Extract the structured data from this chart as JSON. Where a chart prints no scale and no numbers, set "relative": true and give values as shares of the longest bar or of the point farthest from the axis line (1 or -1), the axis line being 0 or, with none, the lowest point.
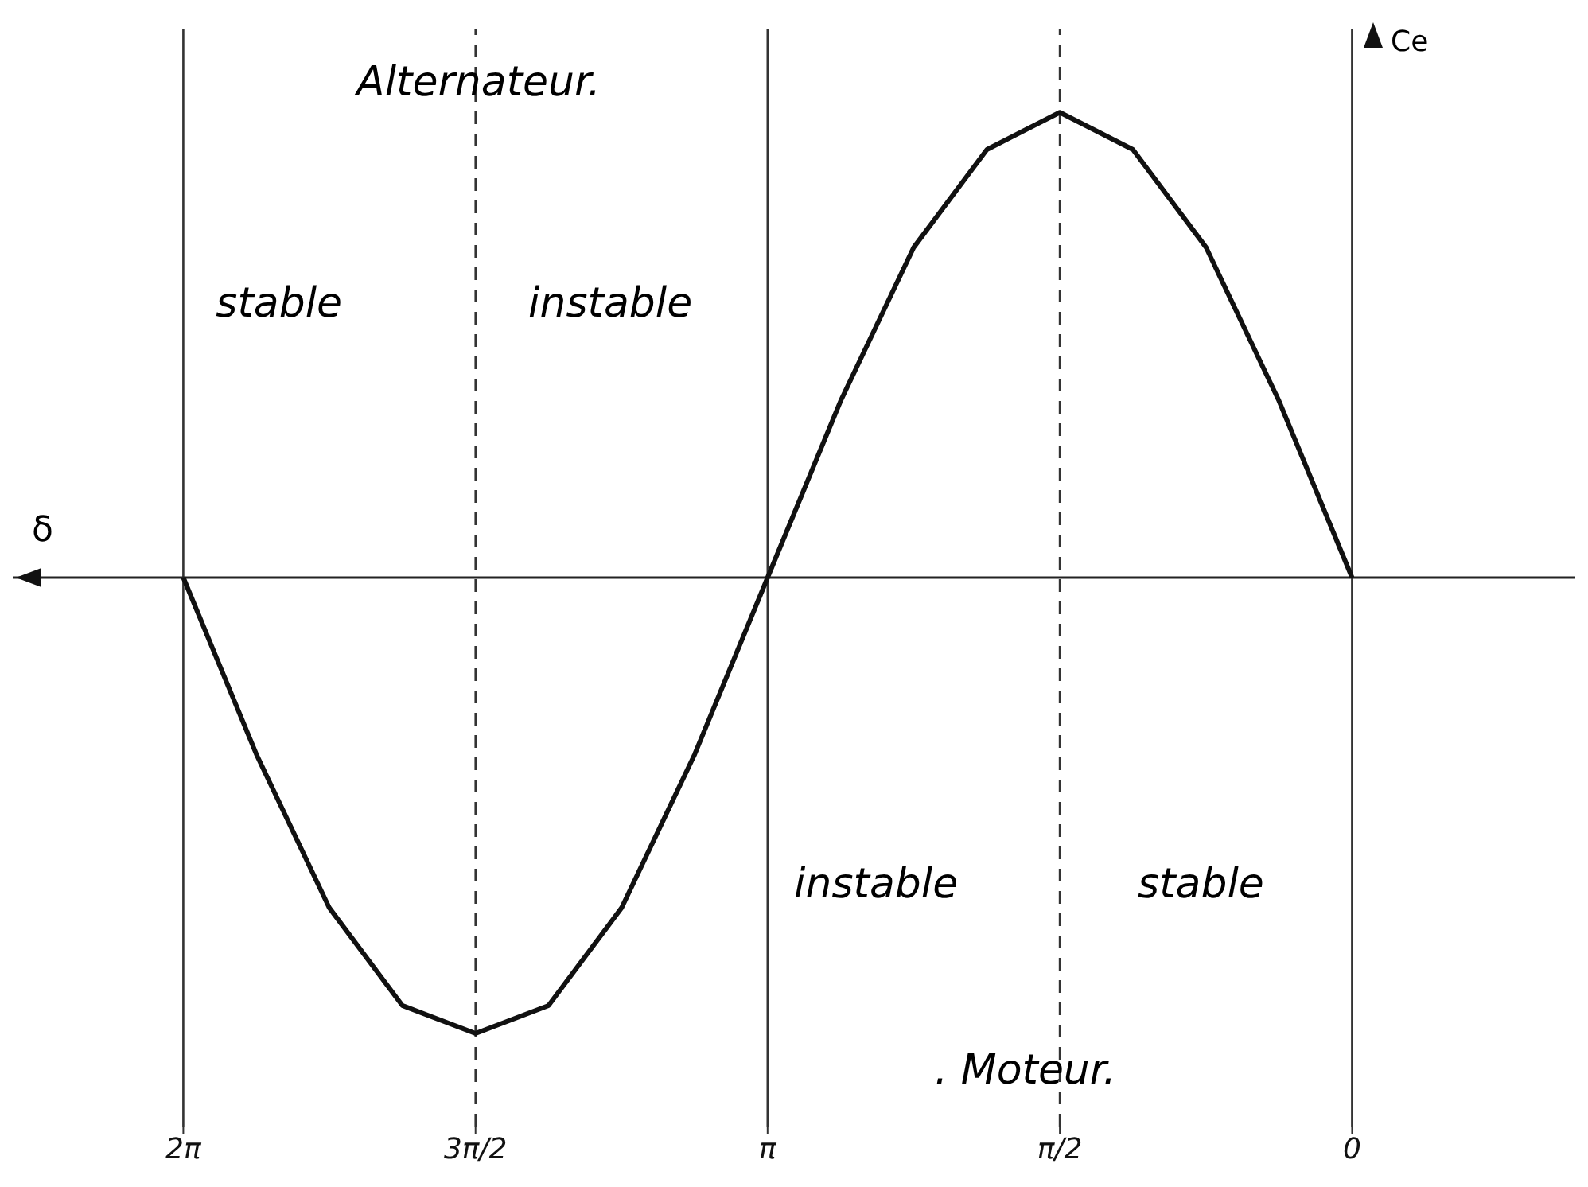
{
  "chart_data": {
    "type": "line",
    "relative": true,
    "xlabel": "δ",
    "ylabel": "Ce",
    "xlim": [
      7.2,
      -1.2
    ],
    "xticks": [
      {
        "value": 6.283,
        "label": "2π"
      },
      {
        "value": 4.712,
        "label": "3π/2"
      },
      {
        "value": 3.142,
        "label": "π"
      },
      {
        "value": 1.571,
        "label": "π/2"
      },
      {
        "value": 0,
        "label": "0"
      }
    ],
    "series": [
      {
        "color": "#111111",
        "x": [
          0,
          0.393,
          0.785,
          1.178,
          1.571,
          1.963,
          2.356,
          2.749,
          3.142,
          3.534,
          3.927,
          4.32,
          4.712,
          5.105,
          5.498,
          5.89,
          6.283
        ],
        "values": [
          0,
          0.38,
          0.71,
          0.92,
          1,
          0.92,
          0.71,
          0.38,
          0,
          -0.38,
          -0.71,
          -0.92,
          -0.98,
          -0.92,
          -0.71,
          -0.38,
          0
        ]
      }
    ],
    "ref_lines": [
      {
        "axis": "x",
        "value": 6.283,
        "color": "#333333",
        "line_style": "solid"
      },
      {
        "axis": "x",
        "value": 4.712,
        "color": "#333333",
        "line_style": "dashed"
      },
      {
        "axis": "x",
        "value": 3.142,
        "color": "#333333",
        "line_style": "solid"
      },
      {
        "axis": "x",
        "value": 1.571,
        "color": "#333333",
        "line_style": "dashed"
      },
      {
        "axis": "x",
        "value": 0,
        "color": "#333333",
        "line_style": "solid"
      }
    ],
    "annotations": [
      "Alternateur.",
      "stable",
      "instable",
      "instable",
      "stable",
      ". Moteur."
    ],
    "grid": false,
    "legend": false,
    "marker": "none",
    "line_style": "solid"
  }
}
